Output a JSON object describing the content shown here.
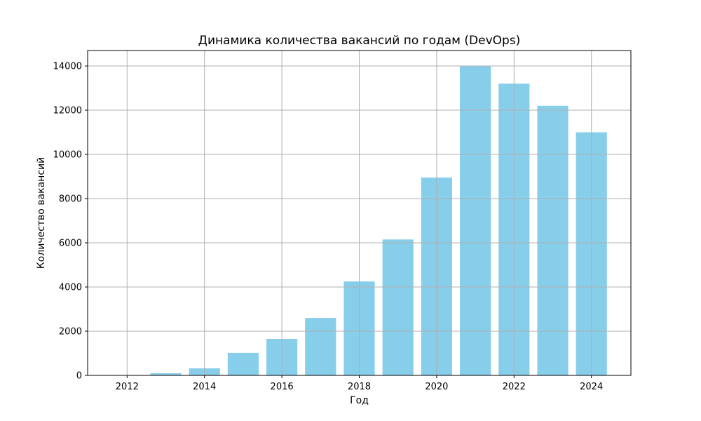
{
  "chart_data": {
    "type": "bar",
    "title": "Динамика количества вакансий по годам (DevOps)",
    "xlabel": "Год",
    "ylabel": "Количество вакансий",
    "x": [
      2012,
      2013,
      2014,
      2015,
      2016,
      2017,
      2018,
      2019,
      2020,
      2021,
      2022,
      2023,
      2024
    ],
    "values": [
      8,
      100,
      320,
      1020,
      1650,
      2600,
      4250,
      6150,
      8950,
      14000,
      13200,
      12200,
      11000
    ],
    "xticks": [
      2012,
      2014,
      2016,
      2018,
      2020,
      2022,
      2024
    ],
    "yticks": [
      0,
      2000,
      4000,
      6000,
      8000,
      10000,
      12000,
      14000
    ],
    "xlim": [
      2010.98,
      2025.02
    ],
    "ylim": [
      0,
      14700
    ],
    "grid": true,
    "bar_color": "#87ceeb",
    "grid_color": "#b0b0b0"
  }
}
